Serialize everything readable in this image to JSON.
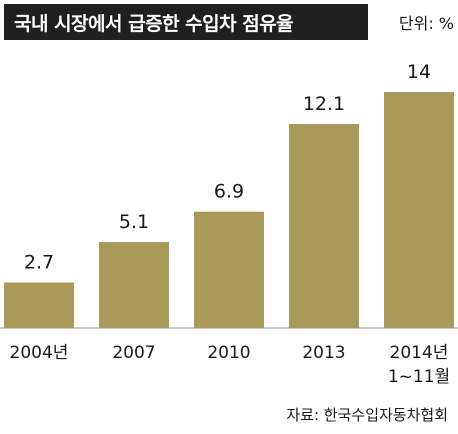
{
  "chart_data": {
    "type": "bar",
    "title": "국내 시장에서 급증한 수입차 점유율",
    "unit_label": "단위: %",
    "categories": [
      "2004년",
      "2007",
      "2010",
      "2013",
      "2014년\n1~11월"
    ],
    "values": [
      2.7,
      5.1,
      6.9,
      12.1,
      14
    ],
    "value_labels": [
      "2.7",
      "5.1",
      "6.9",
      "12.1",
      "14"
    ],
    "bar_color": "#aa9a5a",
    "ylim": [
      0,
      14
    ],
    "grid": false,
    "source": "자료: 한국수입자동차협회"
  }
}
